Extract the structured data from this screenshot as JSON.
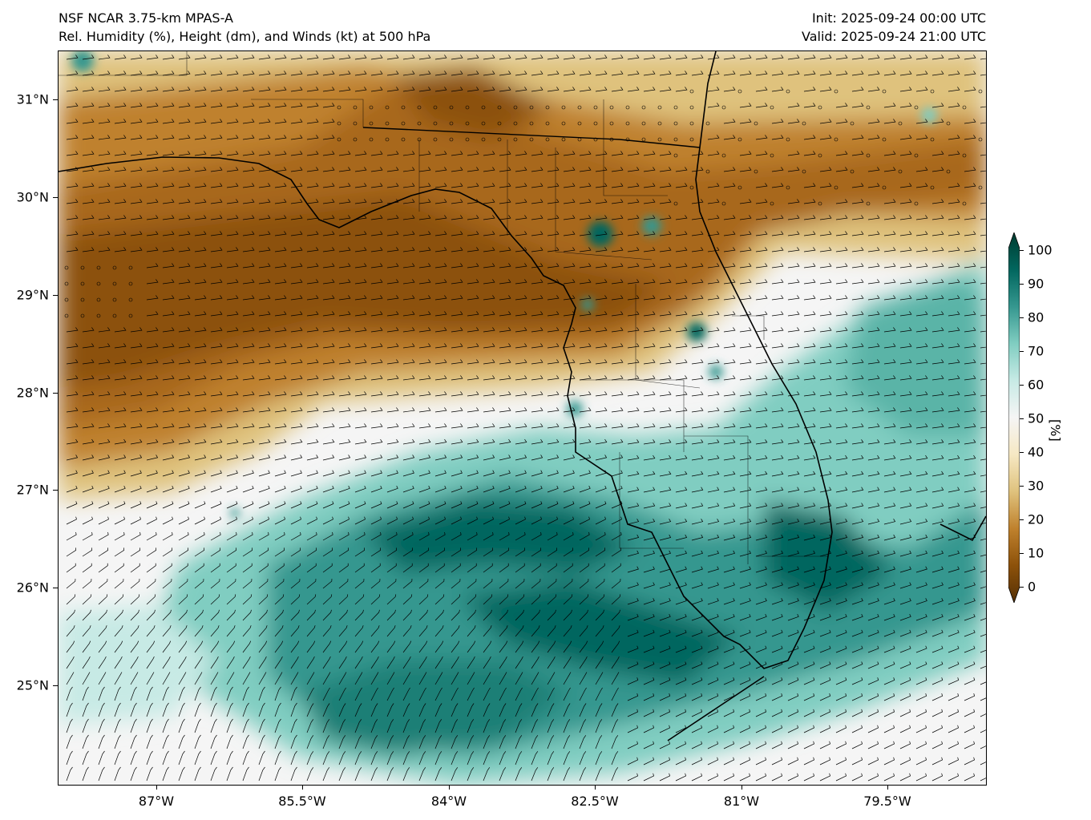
{
  "header": {
    "model": "NSF NCAR 3.75-km MPAS-A",
    "fields": "Rel. Humidity (%), Height (dm), and Winds (kt) at 500 hPa",
    "init": "Init: 2025-09-24 00:00 UTC",
    "valid": "Valid: 2025-09-24 21:00 UTC"
  },
  "axes": {
    "lat_labels": [
      "31°N",
      "30°N",
      "29°N",
      "28°N",
      "27°N",
      "26°N",
      "25°N"
    ],
    "lon_labels": [
      "87°W",
      "85.5°W",
      "84°W",
      "82.5°W",
      "81°W",
      "79.5°W"
    ]
  },
  "colorbar": {
    "unit": "[%]",
    "ticks": [
      "0",
      "10",
      "20",
      "30",
      "40",
      "50",
      "60",
      "70",
      "80",
      "90",
      "100"
    ],
    "colors": [
      "#543005",
      "#8c510a",
      "#bf812d",
      "#dfc27d",
      "#f6e8c3",
      "#f5f5f5",
      "#c7eae5",
      "#80cdc1",
      "#35978f",
      "#01665e",
      "#003c30"
    ]
  },
  "map": {
    "extent_lon": [
      -88.0,
      -78.5
    ],
    "extent_lat": [
      24.0,
      31.5
    ],
    "features": [
      "coastlines",
      "state borders",
      "county borders",
      "wind barbs",
      "calm-wind circles"
    ]
  }
}
